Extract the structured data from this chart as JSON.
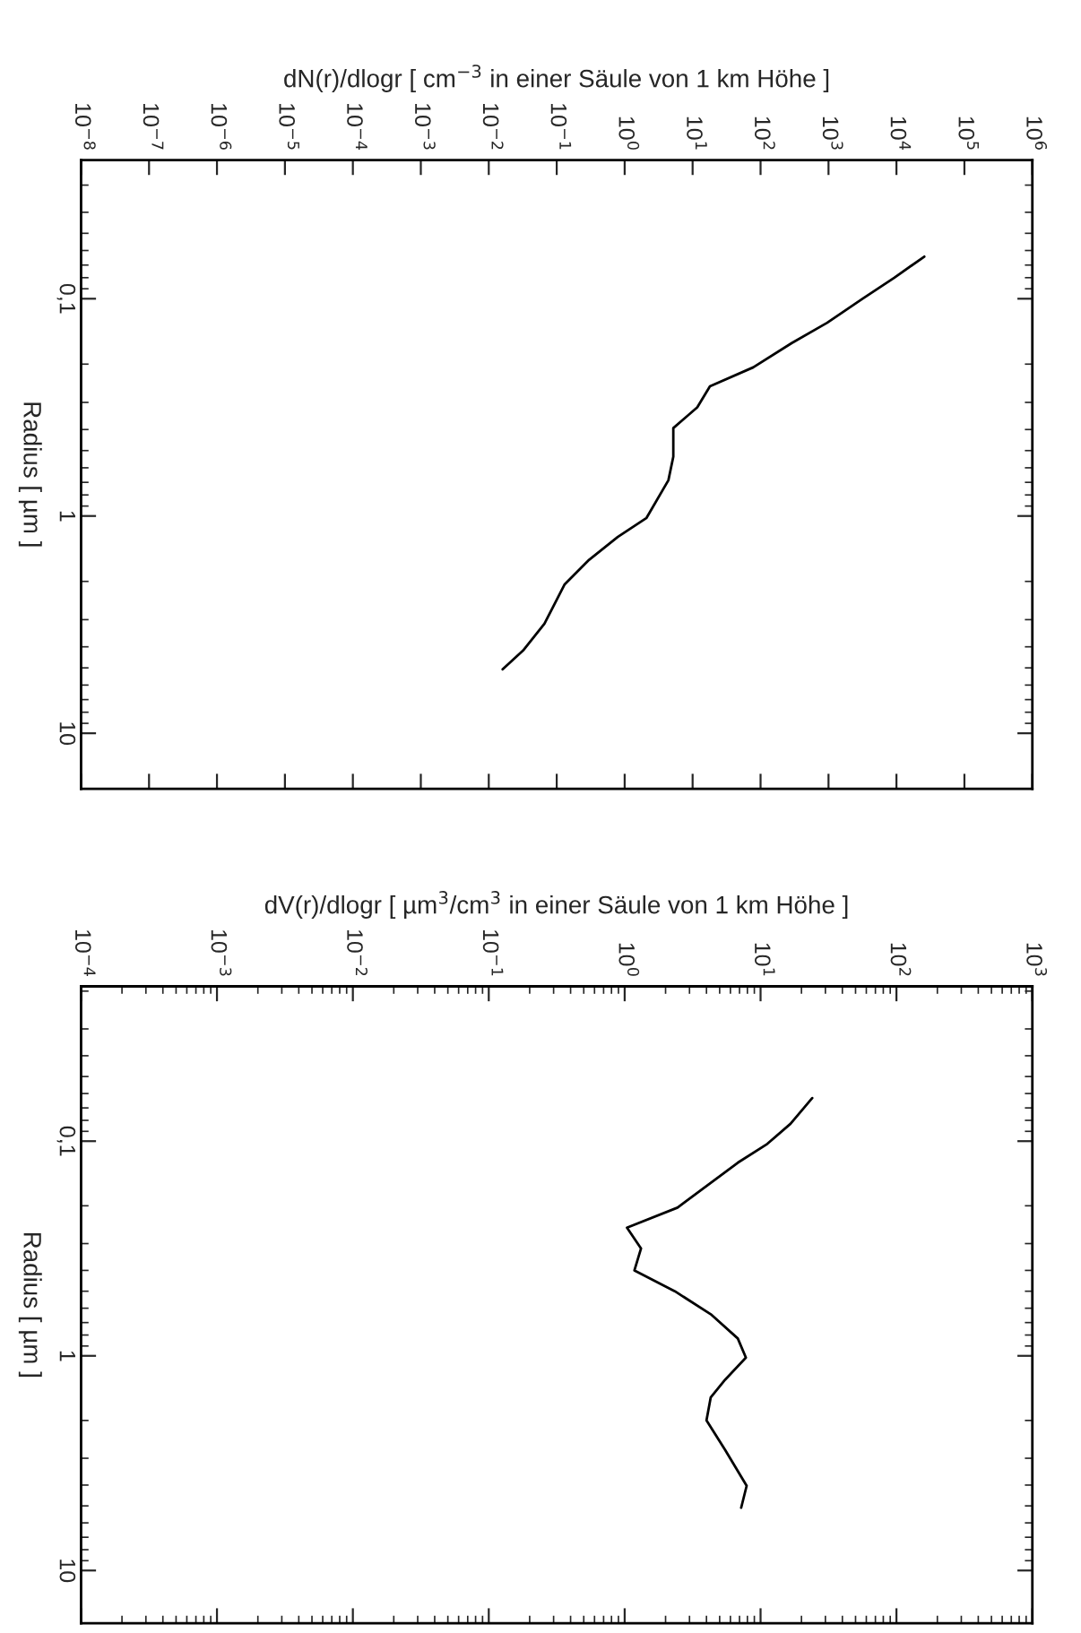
{
  "chart_data": [
    {
      "type": "line",
      "xlabel": "dN(r)/dlogr [ cm$^{−3}$ in einer Säule von 1 km Höhe ]",
      "ylabel": "Radius [ µm ]",
      "log": "xy",
      "grid": false,
      "legend": false,
      "xlim": [
        1e-08,
        1000000.0
      ],
      "xticks": [
        {
          "value": 1e-08,
          "label": "10$^{−8}$"
        },
        {
          "value": 1e-07,
          "label": "10$^{−7}$"
        },
        {
          "value": 1e-06,
          "label": "10$^{−6}$"
        },
        {
          "value": 1e-05,
          "label": "10$^{−5}$"
        },
        {
          "value": 0.0001,
          "label": "10$^{−4}$"
        },
        {
          "value": 0.001,
          "label": "10$^{−3}$"
        },
        {
          "value": 0.01,
          "label": "10$^{−2}$"
        },
        {
          "value": 0.1,
          "label": "10$^{−1}$"
        },
        {
          "value": 1,
          "label": "10$^{0}$"
        },
        {
          "value": 10,
          "label": "10$^{1}$"
        },
        {
          "value": 100,
          "label": "10$^{2}$"
        },
        {
          "value": 1000,
          "label": "10$^{3}$"
        },
        {
          "value": 10000,
          "label": "10$^{4}$"
        },
        {
          "value": 100000,
          "label": "10$^{5}$"
        },
        {
          "value": 1000000,
          "label": "10$^{6}$"
        }
      ],
      "ylim": [
        18,
        0.023
      ],
      "yticks": [
        {
          "value": 0.1,
          "label": "0,1"
        },
        1,
        10
      ],
      "series": [
        {
          "color": "#000000",
          "x": [
            25700,
            9300,
            3160,
            955,
            288,
            78,
            18,
            11.7,
            5.2,
            5.2,
            4.4,
            2.1,
            0.79,
            0.3,
            0.13,
            0.066,
            0.032,
            0.016
          ],
          "values": [
            0.064,
            0.08,
            0.1,
            0.129,
            0.16,
            0.207,
            0.253,
            0.316,
            0.394,
            0.533,
            0.685,
            1.02,
            1.25,
            1.59,
            2.07,
            3.13,
            4.16,
            5.08
          ]
        }
      ]
    },
    {
      "type": "line",
      "xlabel": "dV(r)/dlogr [ µm$^{3}$/cm$^{3}$ in einer Säule von 1 km Höhe ]",
      "ylabel": "Radius [ µm ]",
      "log": "xy",
      "grid": false,
      "legend": false,
      "xlim": [
        0.0001,
        1000
      ],
      "xticks": [
        {
          "value": 0.0001,
          "label": "10$^{−4}$"
        },
        {
          "value": 0.001,
          "label": "10$^{−3}$"
        },
        {
          "value": 0.01,
          "label": "10$^{−2}$"
        },
        {
          "value": 0.1,
          "label": "10$^{−1}$"
        },
        {
          "value": 1,
          "label": "10$^{0}$"
        },
        {
          "value": 10,
          "label": "10$^{1}$"
        },
        {
          "value": 100,
          "label": "10$^{2}$"
        },
        {
          "value": 1000,
          "label": "10$^{3}$"
        }
      ],
      "ylim": [
        17.6,
        0.019
      ],
      "yticks": [
        {
          "value": 0.1,
          "label": "0,1"
        },
        1,
        10
      ],
      "series": [
        {
          "color": "#000000",
          "x": [
            24,
            16.6,
            11.2,
            6.8,
            2.45,
            1.04,
            1.32,
            1.18,
            2.34,
            4.3,
            6.8,
            7.8,
            5.5,
            4.3,
            4.0,
            5.5,
            7.9,
            7.2
          ],
          "values": [
            0.063,
            0.083,
            0.103,
            0.126,
            0.204,
            0.253,
            0.316,
            0.4,
            0.5,
            0.64,
            0.83,
            1.02,
            1.29,
            1.56,
            2.0,
            2.75,
            4.03,
            5.1
          ]
        }
      ]
    }
  ]
}
